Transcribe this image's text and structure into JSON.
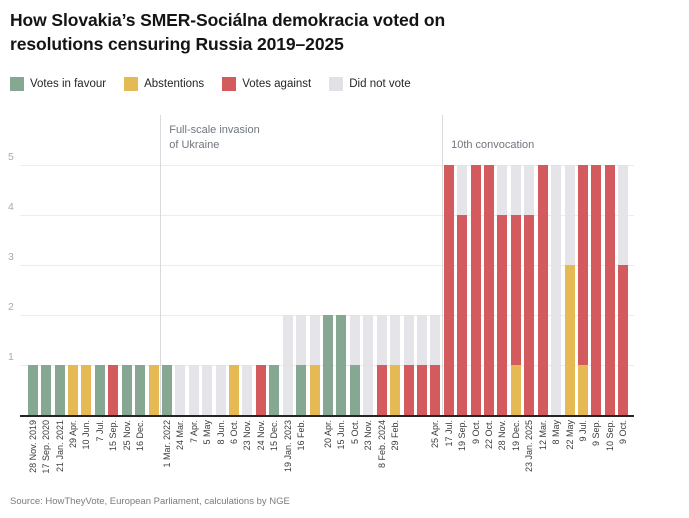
{
  "header": {
    "title_line1": "How Slovakia’s SMER-Sociálna demokracia voted on",
    "title_line2": "resolutions censuring Russia 2019–2025"
  },
  "source_note": "Source: HowTheyVote, European Parliament, calculations by NGE",
  "chart_data": {
    "type": "bar",
    "stacked": true,
    "title": "How Slovakia’s SMER-Sociálna demokracia voted on resolutions censuring Russia 2019–2025",
    "xlabel": "",
    "ylabel": "",
    "ylim": [
      0,
      5
    ],
    "y_ticks": [
      1,
      2,
      3,
      4,
      5
    ],
    "grid": true,
    "legend_position": "top",
    "series_order": [
      "favour",
      "abstention",
      "against",
      "dnv"
    ],
    "series_colors": {
      "favour": "#86a791",
      "abstention": "#e5ba55",
      "against": "#d35b5e",
      "dnv": "#e1e1e6"
    },
    "legend": [
      {
        "key": "favour",
        "label": "Votes in favour"
      },
      {
        "key": "abstention",
        "label": "Abstentions"
      },
      {
        "key": "against",
        "label": "Votes against"
      },
      {
        "key": "dnv",
        "label": "Did not vote"
      }
    ],
    "annotations": [
      {
        "lines": [
          "Full-scale invasion",
          "of Ukraine"
        ],
        "after_bar": 10
      },
      {
        "lines": [
          "10th convocation"
        ],
        "after_bar": 31
      }
    ],
    "bars": [
      {
        "label": "28 Nov. 2019",
        "segments": {
          "favour": 1
        }
      },
      {
        "label": "17 Sep. 2020",
        "segments": {
          "favour": 1
        }
      },
      {
        "label": "21 Jan. 2021",
        "segments": {
          "favour": 1
        }
      },
      {
        "label": "29 Apr.",
        "segments": {
          "abstention": 1
        }
      },
      {
        "label": "10 Jun.",
        "segments": {
          "abstention": 1
        }
      },
      {
        "label": "7 Jul.",
        "segments": {
          "favour": 1
        }
      },
      {
        "label": "15 Sep.",
        "segments": {
          "against": 1
        }
      },
      {
        "label": "25 Nov.",
        "segments": {
          "favour": 1
        }
      },
      {
        "label": "16 Dec.",
        "segments": {
          "favour": 1
        }
      },
      {
        "label": "",
        "segments": {
          "abstention": 1
        }
      },
      {
        "label": "1 Mar. 2022",
        "segments": {
          "favour": 1
        }
      },
      {
        "label": "24 Mar.",
        "segments": {
          "dnv": 1
        }
      },
      {
        "label": "7 Apr.",
        "segments": {
          "dnv": 1
        }
      },
      {
        "label": "5 May",
        "segments": {
          "dnv": 1
        }
      },
      {
        "label": "8 Jun.",
        "segments": {
          "dnv": 1
        }
      },
      {
        "label": "6 Oct.",
        "segments": {
          "abstention": 1
        }
      },
      {
        "label": "23 Nov.",
        "segments": {
          "dnv": 1
        }
      },
      {
        "label": "24 Nov.",
        "segments": {
          "against": 1
        }
      },
      {
        "label": "15 Dec.",
        "segments": {
          "favour": 1
        }
      },
      {
        "label": "19 Jan. 2023",
        "segments": {
          "dnv": 2
        }
      },
      {
        "label": "16 Feb.",
        "segments": {
          "favour": 1,
          "dnv": 1
        }
      },
      {
        "label": "",
        "segments": {
          "abstention": 1,
          "dnv": 1
        }
      },
      {
        "label": "20 Apr.",
        "segments": {
          "favour": 2
        }
      },
      {
        "label": "15 Jun.",
        "segments": {
          "favour": 2
        }
      },
      {
        "label": "5 Oct.",
        "segments": {
          "favour": 1,
          "dnv": 1
        }
      },
      {
        "label": "23 Nov.",
        "segments": {
          "dnv": 2
        }
      },
      {
        "label": "8 Feb. 2024",
        "segments": {
          "against": 1,
          "dnv": 1
        }
      },
      {
        "label": "29 Feb.",
        "segments": {
          "abstention": 1,
          "dnv": 1
        }
      },
      {
        "label": "",
        "segments": {
          "against": 1,
          "dnv": 1
        }
      },
      {
        "label": "",
        "segments": {
          "against": 1,
          "dnv": 1
        }
      },
      {
        "label": "25 Apr.",
        "segments": {
          "against": 1,
          "dnv": 1
        }
      },
      {
        "label": "17 Jul.",
        "segments": {
          "against": 5
        }
      },
      {
        "label": "19 Sep.",
        "segments": {
          "against": 4,
          "dnv": 1
        }
      },
      {
        "label": "9 Oct.",
        "segments": {
          "against": 5
        }
      },
      {
        "label": "22 Oct.",
        "segments": {
          "against": 5
        }
      },
      {
        "label": "28 Nov.",
        "segments": {
          "against": 4,
          "dnv": 1
        }
      },
      {
        "label": "19 Dec.",
        "segments": {
          "abstention": 1,
          "against": 3,
          "dnv": 1
        }
      },
      {
        "label": "23 Jan. 2025",
        "segments": {
          "against": 4,
          "dnv": 1
        }
      },
      {
        "label": "12 Mar.",
        "segments": {
          "against": 5
        }
      },
      {
        "label": "8 May",
        "segments": {
          "dnv": 5
        }
      },
      {
        "label": "22 May",
        "segments": {
          "abstention": 3,
          "dnv": 2
        }
      },
      {
        "label": "9 Jul.",
        "segments": {
          "abstention": 1,
          "against": 4
        }
      },
      {
        "label": "9 Sep.",
        "segments": {
          "against": 5
        }
      },
      {
        "label": "10 Sep.",
        "segments": {
          "against": 5
        }
      },
      {
        "label": "9 Oct.",
        "segments": {
          "against": 3,
          "dnv": 2
        }
      }
    ]
  }
}
